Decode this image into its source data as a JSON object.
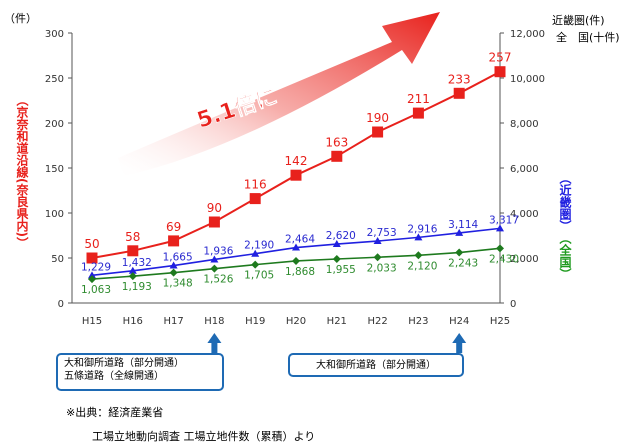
{
  "chart_data": {
    "type": "line",
    "left_unit": "（件）",
    "right_axis_labels": [
      "近畿圏(件)",
      "全　国(十件)"
    ],
    "left_ylabel": "（京奈和道沿線(奈良県内)）",
    "right_ylabel_blue": "（近畿圏）",
    "right_ylabel_green": "（全国）",
    "left_ylim": [
      0,
      300
    ],
    "left_ticks": [
      "0",
      "50",
      "100",
      "150",
      "200",
      "250",
      "300"
    ],
    "right_ylim": [
      0,
      12000
    ],
    "right_ticks": [
      "0",
      "2,000",
      "4,000",
      "6,000",
      "8,000",
      "10,000",
      "12,000"
    ],
    "categories": [
      "H15",
      "H16",
      "H17",
      "H18",
      "H19",
      "H20",
      "H21",
      "H22",
      "H23",
      "H24",
      "H25"
    ],
    "series": [
      {
        "axis": "left",
        "color": "#e8211c",
        "label_color": "#e8211c",
        "values": [
          50,
          58,
          69,
          90,
          116,
          142,
          163,
          190,
          211,
          233,
          257
        ],
        "labels": [
          "50",
          "58",
          "69",
          "90",
          "116",
          "142",
          "163",
          "190",
          "211",
          "233",
          "257"
        ]
      },
      {
        "axis": "right",
        "color": "#2020e0",
        "label_color": "#2a2ad0",
        "values": [
          1229,
          1432,
          1665,
          1936,
          2190,
          2464,
          2620,
          2753,
          2916,
          3114,
          3317
        ],
        "labels": [
          "1,229",
          "1,432",
          "1,665",
          "1,936",
          "2,190",
          "2,464",
          "2,620",
          "2,753",
          "2,916",
          "3,114",
          "3,317"
        ]
      },
      {
        "axis": "right",
        "color": "#1e7a1e",
        "label_color": "#2e8b2e",
        "values": [
          1063,
          1193,
          1348,
          1526,
          1705,
          1868,
          1955,
          2033,
          2120,
          2243,
          2430
        ],
        "labels": [
          "1,063",
          "1,193",
          "1,348",
          "1,526",
          "1,705",
          "1,868",
          "1,955",
          "2,033",
          "2,120",
          "2,243",
          "2,430"
        ]
      }
    ],
    "annotation": "5.1倍に",
    "colors": {
      "arrow": "#e8211c",
      "note_arrow": "#1e6ab4",
      "axis_left": "#e8211c",
      "axis_blue": "#2020e0",
      "axis_green": "#1e9a1e"
    }
  },
  "notes": [
    {
      "category": "H18",
      "lines": [
        "大和御所道路（部分開通）",
        "五條道路（全線開通）"
      ]
    },
    {
      "category": "H24",
      "lines": [
        "大和御所道路（部分開通）"
      ]
    }
  ],
  "source": {
    "line1": "※出典：経済産業省",
    "line2": "工場立地動向調査 工場立地件数（累積）より"
  }
}
